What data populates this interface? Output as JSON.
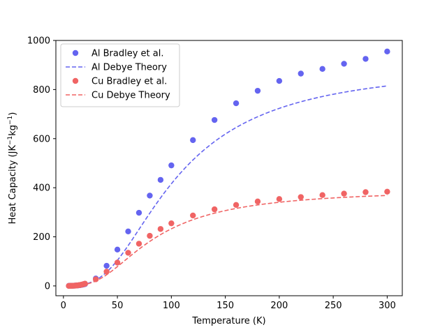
{
  "chart_data": {
    "type": "scatter",
    "title": "",
    "xlabel": "Temperature (K)",
    "ylabel_parts": [
      "Heat Capacity (JK",
      "−1",
      "kg",
      "−1",
      ")"
    ],
    "xlim": [
      -7,
      314
    ],
    "ylim": [
      -40,
      1000
    ],
    "xticks": [
      0,
      50,
      100,
      150,
      200,
      250,
      300
    ],
    "yticks": [
      0,
      200,
      400,
      600,
      800,
      1000
    ],
    "grid": false,
    "legend_position": "upper-left",
    "series": [
      {
        "name": "Al Bradley et al.",
        "kind": "markers",
        "color": "#6464f0",
        "x": [
          5,
          6,
          7,
          8,
          9,
          10,
          11,
          12,
          13,
          14,
          15,
          16,
          17,
          18,
          19,
          20,
          30,
          40,
          50,
          60,
          70,
          80,
          90,
          100,
          120,
          140,
          160,
          180,
          200,
          220,
          240,
          260,
          280,
          300
        ],
        "y": [
          0.3,
          0.4,
          0.5,
          0.6,
          0.8,
          1.0,
          1.3,
          1.6,
          2.0,
          2.5,
          3.0,
          3.7,
          4.5,
          5.4,
          6.4,
          7.5,
          30,
          82,
          148,
          222,
          298,
          368,
          432,
          491,
          594,
          676,
          744,
          795,
          835,
          865,
          884,
          905,
          925,
          955
        ]
      },
      {
        "name": "Al Debye Theory",
        "kind": "dashed-line",
        "color": "#6464f0",
        "theta": 428,
        "cmax": 900,
        "x_range": [
          5,
          300
        ]
      },
      {
        "name": "Cu Bradley et al.",
        "kind": "markers",
        "color": "#f06464",
        "x": [
          5,
          6,
          7,
          8,
          9,
          10,
          11,
          12,
          13,
          14,
          15,
          16,
          17,
          18,
          19,
          20,
          30,
          40,
          50,
          60,
          70,
          80,
          90,
          100,
          120,
          140,
          160,
          180,
          200,
          220,
          240,
          260,
          280,
          300
        ],
        "y": [
          0.1,
          0.2,
          0.3,
          0.4,
          0.6,
          0.9,
          1.2,
          1.6,
          2.1,
          2.7,
          3.4,
          4.2,
          5.2,
          6.3,
          7.6,
          9.0,
          27,
          58,
          95,
          135,
          172,
          204,
          232,
          255,
          287,
          312,
          330,
          344,
          354,
          362,
          370,
          376,
          382,
          384
        ]
      },
      {
        "name": "Cu Debye Theory",
        "kind": "dashed-line",
        "color": "#f06464",
        "theta": 343,
        "cmax": 393,
        "x_range": [
          5,
          300
        ]
      }
    ]
  }
}
